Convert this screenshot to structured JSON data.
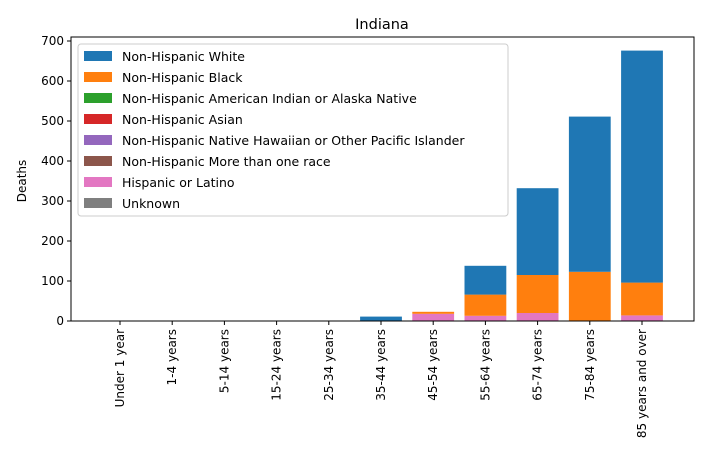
{
  "chart_data": {
    "type": "bar",
    "stacked": true,
    "title": "Indiana",
    "xlabel": "",
    "ylabel": "Deaths",
    "ylim": [
      0,
      710
    ],
    "yticks": [
      0,
      100,
      200,
      300,
      400,
      500,
      600,
      700
    ],
    "categories": [
      "Under 1 year",
      "1-4 years",
      "5-14 years",
      "15-24 years",
      "25-34 years",
      "35-44 years",
      "45-54 years",
      "55-64 years",
      "65-74 years",
      "75-84 years",
      "85 years and over"
    ],
    "legend_position": "upper-left",
    "grid": false,
    "series": [
      {
        "name": "Hispanic or Latino",
        "color": "#e377c2",
        "values": [
          0,
          0,
          0,
          0,
          0,
          0,
          18,
          13,
          20,
          0,
          14
        ]
      },
      {
        "name": "Non-Hispanic Black",
        "color": "#ff7f0e",
        "values": [
          0,
          0,
          0,
          0,
          0,
          0,
          5,
          53,
          95,
          123,
          82
        ]
      },
      {
        "name": "Non-Hispanic White",
        "color": "#1f77b4",
        "values": [
          0,
          0,
          0,
          0,
          0,
          11,
          0,
          72,
          217,
          388,
          580
        ]
      },
      {
        "name": "Non-Hispanic American Indian or Alaska Native",
        "color": "#2ca02c",
        "values": [
          0,
          0,
          0,
          0,
          0,
          0,
          0,
          0,
          0,
          0,
          0
        ]
      },
      {
        "name": "Non-Hispanic Asian",
        "color": "#d62728",
        "values": [
          0,
          0,
          0,
          0,
          0,
          0,
          0,
          0,
          0,
          0,
          0
        ]
      },
      {
        "name": "Non-Hispanic Native Hawaiian or Other Pacific Islander",
        "color": "#9467bd",
        "values": [
          0,
          0,
          0,
          0,
          0,
          0,
          0,
          0,
          0,
          0,
          0
        ]
      },
      {
        "name": "Non-Hispanic More than one race",
        "color": "#8c564b",
        "values": [
          0,
          0,
          0,
          0,
          0,
          0,
          0,
          0,
          0,
          0,
          0
        ]
      },
      {
        "name": "Unknown",
        "color": "#7f7f7f",
        "values": [
          0,
          0,
          0,
          0,
          0,
          0,
          0,
          0,
          0,
          0,
          0
        ]
      }
    ],
    "legend_order": [
      "Non-Hispanic White",
      "Non-Hispanic Black",
      "Non-Hispanic American Indian or Alaska Native",
      "Non-Hispanic Asian",
      "Non-Hispanic Native Hawaiian or Other Pacific Islander",
      "Non-Hispanic More than one race",
      "Hispanic or Latino",
      "Unknown"
    ]
  }
}
